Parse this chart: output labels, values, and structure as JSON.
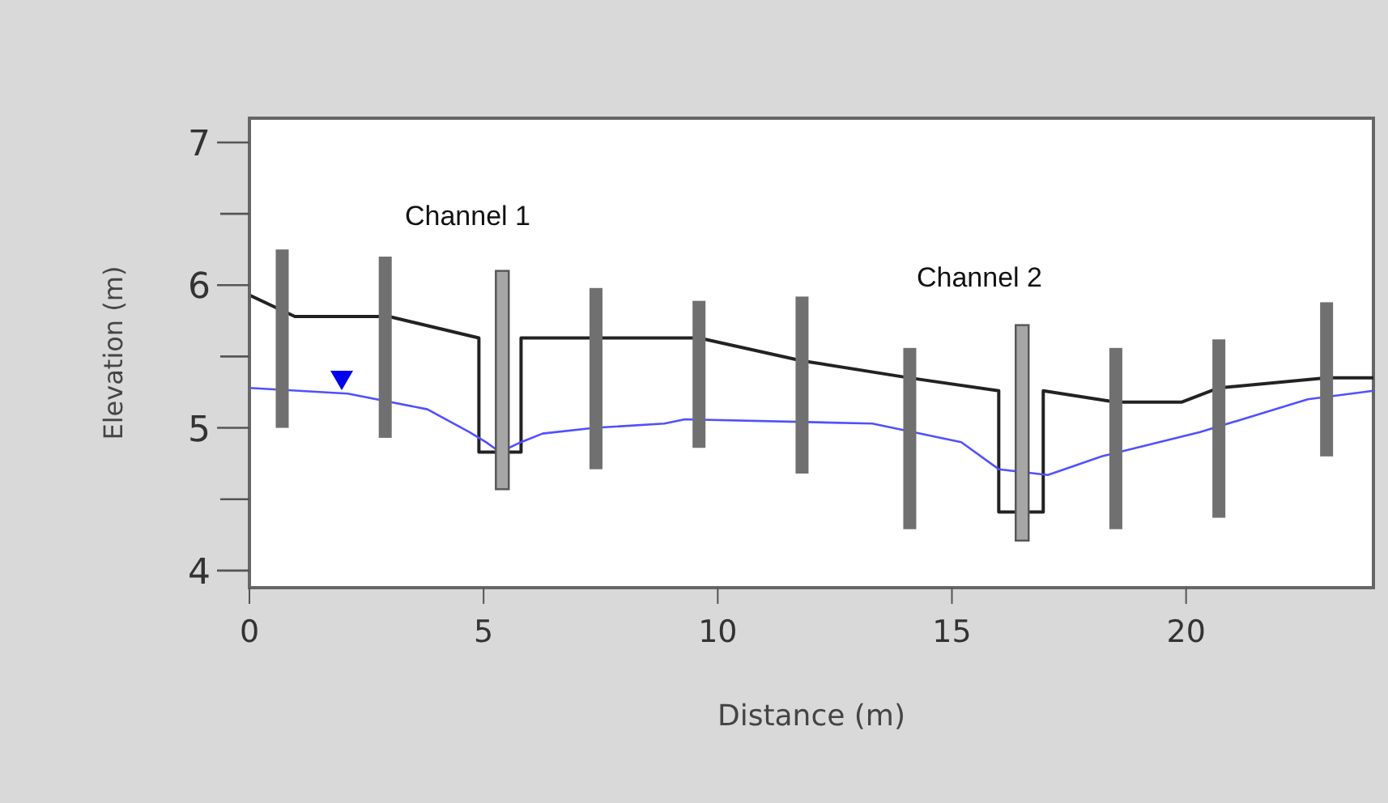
{
  "chart_data": {
    "type": "line",
    "xlabel": "Distance  (m)",
    "ylabel": "Elevation (m)",
    "xlim": [
      0,
      24
    ],
    "xticks": [
      0,
      5,
      10,
      15,
      20
    ],
    "ylim": [
      3.88,
      7.17
    ],
    "yticks": [
      4,
      5,
      6,
      7
    ],
    "annotations": [
      "Channel 1",
      "Channel 2"
    ],
    "marker": "none",
    "line_style": "solid",
    "series": [
      {
        "color": "#222222",
        "x": [
          0,
          0.97,
          2.98,
          4.9,
          4.9,
          5.8,
          5.8,
          9.6,
          11.8,
          14.1,
          16.0,
          16.0,
          16.95,
          16.95,
          18.5,
          19.9,
          20.7,
          23.0,
          24
        ],
        "values": [
          5.93,
          5.78,
          5.78,
          5.63,
          4.83,
          4.83,
          5.63,
          5.63,
          5.47,
          5.35,
          5.26,
          4.41,
          4.41,
          5.26,
          5.18,
          5.18,
          5.28,
          5.35,
          5.35
        ]
      },
      {
        "color": "#5050ff",
        "x": [
          0,
          2.1,
          3.8,
          4.7,
          5.05,
          5.35,
          5.8,
          6.26,
          7.37,
          8.86,
          9.3,
          13.3,
          15.2,
          16.0,
          17.05,
          18.2,
          20.3,
          22.6,
          24
        ],
        "values": [
          5.28,
          5.24,
          5.13,
          4.97,
          4.9,
          4.83,
          4.9,
          4.96,
          5.0,
          5.03,
          5.06,
          5.03,
          4.9,
          4.71,
          4.67,
          4.8,
          4.97,
          5.2,
          5.26
        ]
      },
      {
        "type": "bar",
        "color": "#707070",
        "x": [
          0.7,
          2.9,
          7.4,
          9.6,
          11.8,
          14.1,
          18.5,
          20.7,
          23.0
        ],
        "base": [
          5.0,
          4.93,
          4.71,
          4.86,
          4.68,
          4.29,
          4.29,
          4.37,
          4.8
        ],
        "values": [
          1.25,
          1.27,
          1.27,
          1.03,
          1.24,
          1.27,
          1.27,
          1.25,
          1.08
        ]
      },
      {
        "type": "bar",
        "color": "#a6a6a6",
        "x": [
          5.4,
          16.5
        ],
        "base": [
          4.57,
          4.21
        ],
        "values": [
          1.53,
          1.51
        ]
      }
    ]
  }
}
